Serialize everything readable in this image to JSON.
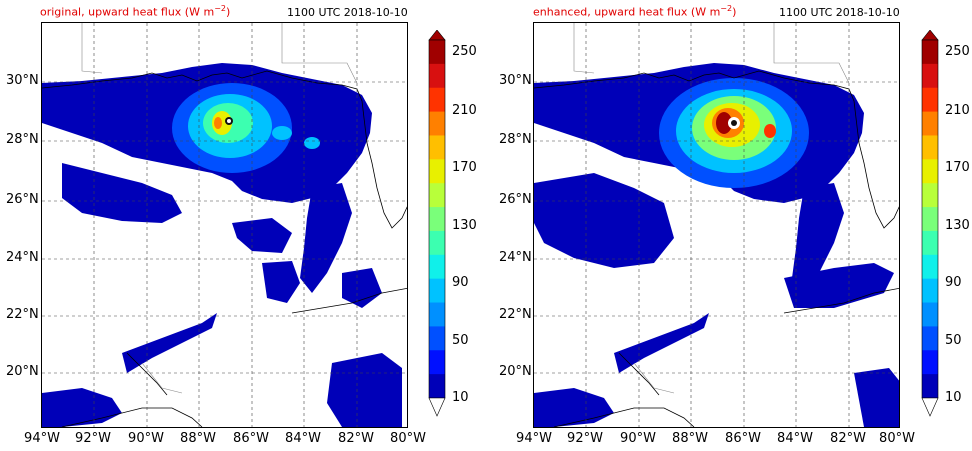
{
  "panels": [
    {
      "id": "original",
      "title": "original, upward heat flux (W m",
      "title_unit_exp": "−2",
      "title_tail": ")",
      "timestamp": "1100 UTC 2018-10-10"
    },
    {
      "id": "enhanced",
      "title": "enhanced, upward heat flux (W m",
      "title_unit_exp": "−2",
      "title_tail": ")",
      "timestamp": "1100 UTC 2018-10-10"
    }
  ],
  "lat_labels": [
    "30°N",
    "28°N",
    "26°N",
    "24°N",
    "22°N",
    "20°N"
  ],
  "lon_labels": [
    "94°W",
    "92°W",
    "90°W",
    "88°W",
    "86°W",
    "84°W",
    "82°W",
    "80°W"
  ],
  "colorbar": {
    "ticks": [
      "250",
      "210",
      "170",
      "130",
      "90",
      "50",
      "10"
    ],
    "colors": [
      "#a00000",
      "#d81010",
      "#ff3300",
      "#ff8000",
      "#ffbf00",
      "#e8f000",
      "#b8ff3a",
      "#7aff7a",
      "#3cffb0",
      "#10f0ea",
      "#00c2ff",
      "#0090ff",
      "#0050ff",
      "#0010ff",
      "#0000b8"
    ]
  },
  "map_data": {
    "extent_lon": [
      -94,
      -80
    ],
    "extent_lat": [
      18,
      32
    ],
    "storm_center": {
      "lon": -86.9,
      "lat": 28.8
    }
  }
}
